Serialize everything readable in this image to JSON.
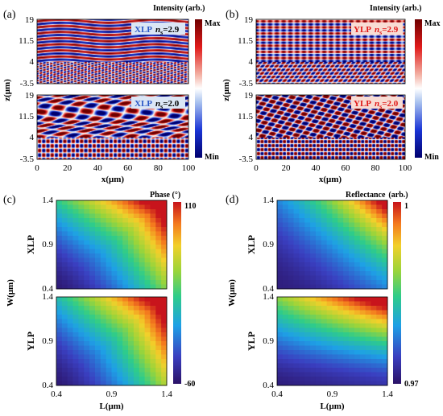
{
  "figure_labels": {
    "a": "(a)",
    "b": "(b)",
    "c": "(c)",
    "d": "(d)"
  },
  "colors": {
    "xlp": "#2a56c6",
    "ylp": "#e01818",
    "tag_bg_xlp": "#dbe6f5",
    "tag_bg_ylp": "#f8dcd4"
  },
  "chart_data": [
    {
      "panel": "a",
      "type": "heatmap",
      "field": "intensity",
      "xlabel": "x(μm)",
      "ylabel": "z(μm)",
      "xticks": [
        "0",
        "20",
        "40",
        "60",
        "80",
        "100"
      ],
      "yticks": [
        "19",
        "11.5",
        "4",
        "-3.5"
      ],
      "xlim": [
        0,
        100
      ],
      "ylim": [
        -3.5,
        19
      ],
      "colorbar": {
        "title": "Intensity (arb.)",
        "max_label": "Max",
        "min_label": "Min",
        "colormap": "blue-white-red"
      },
      "subplots": [
        {
          "polarization": "XLP",
          "n_label": "n",
          "n_sub": "s",
          "n_value": "=2.9"
        },
        {
          "polarization": "XLP",
          "n_label": "n",
          "n_sub": "s",
          "n_value": "=2.0"
        }
      ]
    },
    {
      "panel": "b",
      "type": "heatmap",
      "field": "intensity",
      "xlabel": "x(μm)",
      "ylabel": "z(μm)",
      "xticks": [
        "0",
        "20",
        "40",
        "60",
        "80",
        "100"
      ],
      "yticks": [
        "19",
        "11.5",
        "4",
        "-3.5"
      ],
      "xlim": [
        0,
        100
      ],
      "ylim": [
        -3.5,
        19
      ],
      "colorbar": {
        "title": "Intensity (arb.)",
        "max_label": "Max",
        "min_label": "Min",
        "colormap": "blue-white-red"
      },
      "subplots": [
        {
          "polarization": "YLP",
          "n_label": "n",
          "n_sub": "s",
          "n_value": "=2.9"
        },
        {
          "polarization": "YLP",
          "n_label": "n",
          "n_sub": "s",
          "n_value": "=2.0"
        }
      ]
    },
    {
      "panel": "c",
      "type": "heatmap",
      "field": "phase",
      "xlabel": "L(μm)",
      "ylabel": "W(μm)",
      "xticks": [
        "0.4",
        "0.9",
        "1.4"
      ],
      "yticks": [
        "0.4",
        "0.9",
        "1.4"
      ],
      "xlim": [
        0.4,
        1.4
      ],
      "ylim": [
        0.4,
        1.4
      ],
      "colorbar": {
        "title": "Phase (°)",
        "max_label": "110",
        "min_label": "-60",
        "colormap": "jet"
      },
      "subplots": [
        {
          "polarization": "XLP"
        },
        {
          "polarization": "YLP"
        }
      ]
    },
    {
      "panel": "d",
      "type": "heatmap",
      "field": "reflectance",
      "xlabel": "L(μm)",
      "ylabel": "W(μm)",
      "xticks": [
        "0.4",
        "0.9",
        "1.4"
      ],
      "yticks": [
        "0.4",
        "0.9",
        "1.4"
      ],
      "xlim": [
        0.4,
        1.4
      ],
      "ylim": [
        0.4,
        1.4
      ],
      "colorbar": {
        "title": "Reflectance",
        "unit": "(arb.)",
        "max_label": "1",
        "min_label": "0.97",
        "colormap": "jet"
      },
      "subplots": [
        {
          "polarization": "XLP"
        },
        {
          "polarization": "YLP"
        }
      ]
    }
  ]
}
